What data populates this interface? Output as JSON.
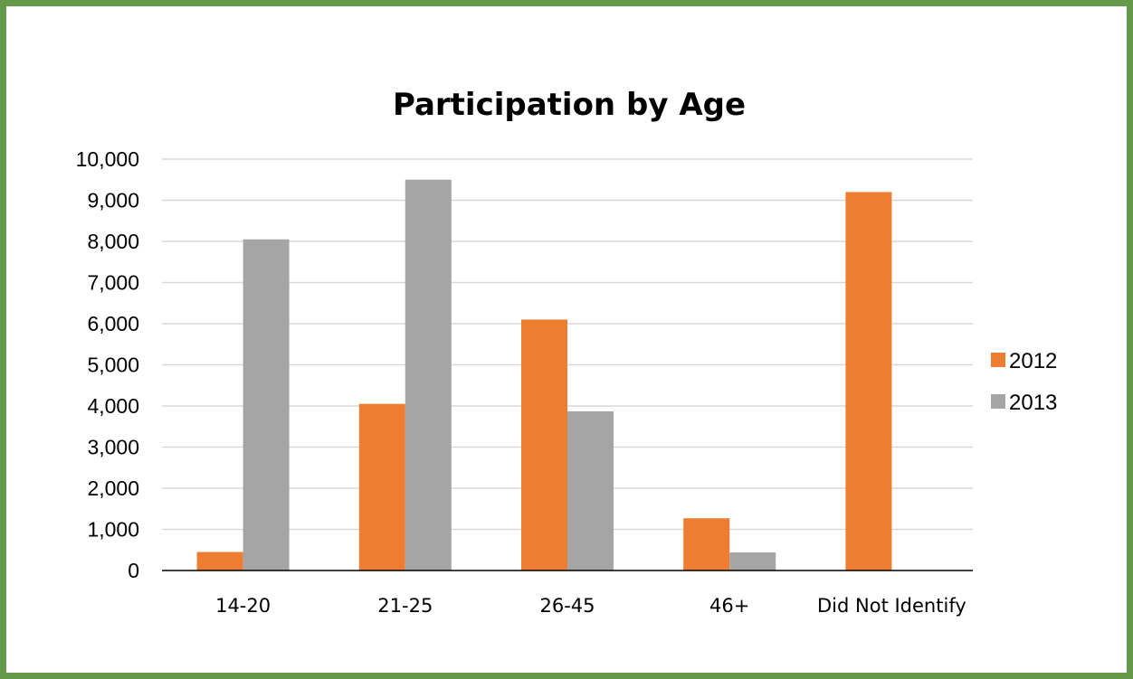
{
  "colors": {
    "frame": "#64994A",
    "grid": "#D9D9D9",
    "axis": "#000000"
  },
  "chart_data": {
    "type": "bar",
    "title": "Participation by Age",
    "xlabel": "",
    "ylabel": "",
    "categories": [
      "14-20",
      "21-25",
      "26-45",
      "46+",
      "Did Not Identify"
    ],
    "series": [
      {
        "name": "2012",
        "color": "#ED7D31",
        "values": [
          450,
          4050,
          6100,
          1270,
          9200
        ]
      },
      {
        "name": "2013",
        "color": "#A5A5A5",
        "values": [
          8050,
          9500,
          3870,
          440,
          0
        ]
      }
    ],
    "ylim": [
      0,
      10000
    ],
    "yticks": [
      0,
      1000,
      2000,
      3000,
      4000,
      5000,
      6000,
      7000,
      8000,
      9000,
      10000
    ],
    "ytick_labels": [
      "0",
      "1,000",
      "2,000",
      "3,000",
      "4,000",
      "5,000",
      "6,000",
      "7,000",
      "8,000",
      "9,000",
      "10,000"
    ],
    "grid": true,
    "legend_position": "right"
  }
}
